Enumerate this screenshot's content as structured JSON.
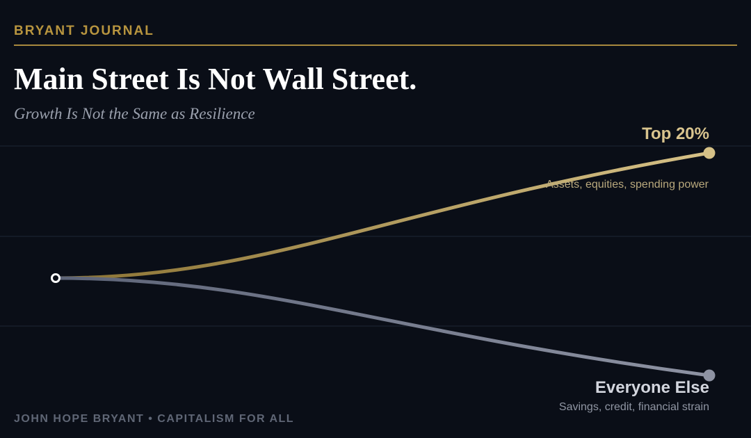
{
  "brand": {
    "name": "BRYANT JOURNAL",
    "accent": "#b8953f"
  },
  "headline": {
    "title": "Main Street Is Not Wall Street.",
    "subtitle": "Growth Is Not the Same as Resilience"
  },
  "footer": {
    "credit": "JOHN HOPE BRYANT • CAPITALISM FOR ALL"
  },
  "chart_data": {
    "type": "line",
    "title": "",
    "xlabel": "",
    "ylabel": "",
    "grid": true,
    "legend": "direct labels at right end of lines",
    "origin": {
      "x": 0,
      "y": 0
    },
    "series": [
      {
        "name": "Top 20%",
        "description": "Assets, equities, spending power",
        "color_start": "#8a7233",
        "color_end": "#d6c187",
        "points": [
          {
            "x": 0,
            "y": 0
          },
          {
            "x": 1,
            "y": 0.9
          }
        ]
      },
      {
        "name": "Everyone Else",
        "description": "Savings, credit, financial strain",
        "color_start": "#5d6478",
        "color_end": "#8e93a3",
        "points": [
          {
            "x": 0,
            "y": 0
          },
          {
            "x": 1,
            "y": -0.7
          }
        ]
      }
    ]
  }
}
